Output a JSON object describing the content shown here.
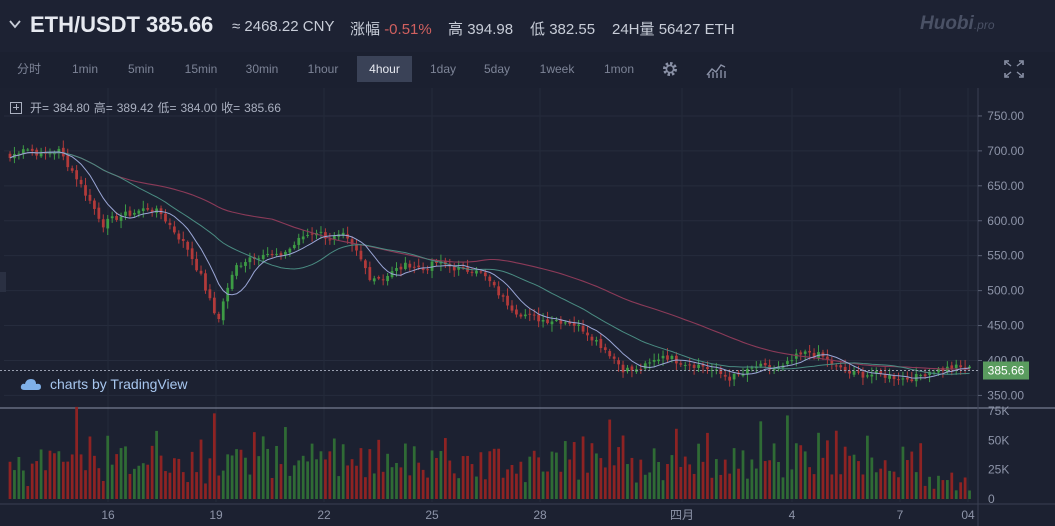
{
  "header": {
    "pair": "ETH/USDT",
    "price": "385.66",
    "cny": "≈ 2468.22 CNY",
    "change_label": "涨幅",
    "change_value": "-0.51%",
    "high_label": "高",
    "high_value": "394.98",
    "low_label": "低",
    "low_value": "382.55",
    "vol_label": "24H量",
    "vol_value": "56427 ETH",
    "logo_main": "Huobi",
    "logo_sub": ".pro"
  },
  "toolbar": {
    "timeframes": [
      "分时",
      "1min",
      "5min",
      "15min",
      "30min",
      "1hour",
      "4hour",
      "1day",
      "5day",
      "1week",
      "1mon"
    ],
    "active": "4hour"
  },
  "ohlc": {
    "open_label": "开=",
    "open": "384.80",
    "high_label": "高=",
    "high": "389.42",
    "low_label": "低=",
    "low": "384.00",
    "close_label": "收=",
    "close": "385.66"
  },
  "watermark": "charts by TradingView",
  "colors": {
    "up": "#3d9b45",
    "down": "#b23a3a",
    "ma_slow": "#8b3a58",
    "ma_mid": "#4a8c82",
    "ma_fast": "#9aa6d6",
    "price_tag": "#5a9c5f",
    "change_negative": "#d0605f"
  },
  "chart_data": {
    "type": "candlestick",
    "price_axis": {
      "ticks": [
        "750.00",
        "700.00",
        "650.00",
        "600.00",
        "550.00",
        "500.00",
        "450.00",
        "400.00",
        "350.00"
      ],
      "range": [
        332,
        790
      ]
    },
    "last_price_tag": "385.66",
    "volume_axis": {
      "ticks": [
        "75K",
        "50K",
        "25K",
        "0"
      ],
      "range": [
        0,
        75000
      ]
    },
    "x_labels": [
      "16",
      "19",
      "22",
      "25",
      "28",
      "四月",
      "4",
      "7",
      "04"
    ],
    "anchors": [
      [
        0,
        690
      ],
      [
        3,
        705
      ],
      [
        7,
        695
      ],
      [
        11,
        700
      ],
      [
        15,
        662
      ],
      [
        18,
        628
      ],
      [
        21,
        595
      ],
      [
        24,
        605
      ],
      [
        28,
        612
      ],
      [
        31,
        618
      ],
      [
        34,
        610
      ],
      [
        37,
        585
      ],
      [
        40,
        560
      ],
      [
        43,
        520
      ],
      [
        46,
        468
      ],
      [
        47,
        462
      ],
      [
        49,
        505
      ],
      [
        51,
        535
      ],
      [
        54,
        548
      ],
      [
        57,
        552
      ],
      [
        60,
        548
      ],
      [
        63,
        560
      ],
      [
        66,
        578
      ],
      [
        69,
        585
      ],
      [
        72,
        575
      ],
      [
        75,
        578
      ],
      [
        78,
        555
      ],
      [
        81,
        520
      ],
      [
        84,
        518
      ],
      [
        87,
        530
      ],
      [
        90,
        538
      ],
      [
        93,
        530
      ],
      [
        96,
        540
      ],
      [
        99,
        535
      ],
      [
        102,
        528
      ],
      [
        105,
        532
      ],
      [
        108,
        512
      ],
      [
        111,
        488
      ],
      [
        114,
        470
      ],
      [
        117,
        463
      ],
      [
        120,
        458
      ],
      [
        123,
        458
      ],
      [
        126,
        455
      ],
      [
        129,
        445
      ],
      [
        132,
        428
      ],
      [
        135,
        410
      ],
      [
        138,
        388
      ],
      [
        141,
        385
      ],
      [
        144,
        395
      ],
      [
        147,
        408
      ],
      [
        150,
        400
      ],
      [
        153,
        395
      ],
      [
        156,
        392
      ],
      [
        159,
        383
      ],
      [
        162,
        375
      ],
      [
        165,
        380
      ],
      [
        168,
        392
      ],
      [
        171,
        388
      ],
      [
        174,
        390
      ],
      [
        177,
        405
      ],
      [
        180,
        412
      ],
      [
        183,
        405
      ],
      [
        186,
        390
      ],
      [
        189,
        382
      ],
      [
        192,
        380
      ],
      [
        195,
        380
      ],
      [
        198,
        378
      ],
      [
        201,
        374
      ],
      [
        204,
        376
      ],
      [
        207,
        385
      ],
      [
        210,
        388
      ],
      [
        213,
        390
      ],
      [
        216,
        388
      ]
    ],
    "volume_pattern": [
      22,
      30,
      28,
      35,
      18,
      40,
      25,
      33,
      20,
      45,
      28,
      32,
      38,
      24,
      30,
      55,
      26,
      36,
      42,
      29,
      33,
      21,
      48,
      27,
      35,
      31,
      44,
      23,
      38,
      29,
      50,
      26,
      34,
      41,
      28,
      36,
      22,
      47,
      30,
      33
    ]
  }
}
